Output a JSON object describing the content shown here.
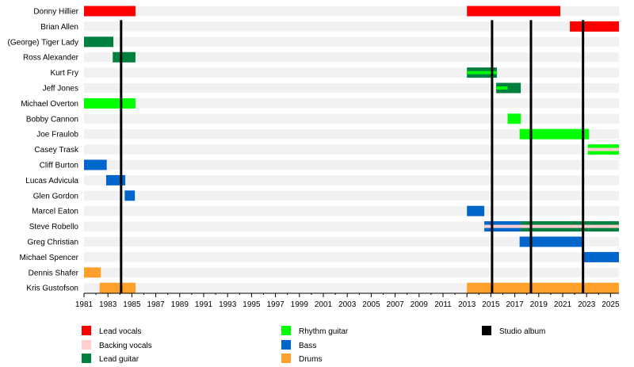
{
  "chart_data": {
    "type": "timeline",
    "xlim": [
      1981,
      2025.7
    ],
    "x_ticks": [
      1981,
      1983,
      1985,
      1987,
      1989,
      1991,
      1993,
      1995,
      1997,
      1999,
      2001,
      2003,
      2005,
      2007,
      2009,
      2011,
      2013,
      2015,
      2017,
      2019,
      2021,
      2023,
      2025
    ],
    "roles": {
      "lead_vocals": {
        "label": "Lead vocals",
        "color": "#ff0000"
      },
      "backing_vocals": {
        "label": "Backing vocals",
        "color": "#ffcfcf"
      },
      "lead_guitar": {
        "label": "Lead guitar",
        "color": "#00803f"
      },
      "rhythm_guitar": {
        "label": "Rhythm guitar",
        "color": "#00ff00"
      },
      "bass": {
        "label": "Bass",
        "color": "#0066cc"
      },
      "drums": {
        "label": "Drums",
        "color": "#ffa02a"
      },
      "studio_album": {
        "label": "Studio album",
        "color": "#000000"
      }
    },
    "legend_order": [
      [
        "lead_vocals",
        "backing_vocals",
        "lead_guitar"
      ],
      [
        "rhythm_guitar",
        "bass",
        "drums"
      ],
      [
        "studio_album"
      ]
    ],
    "legend_placement": "bottom",
    "studio_albums": [
      1984.1,
      2015.1,
      2018.35,
      2022.7
    ],
    "members": [
      {
        "name": "Donny Hillier",
        "periods": [
          {
            "role": "lead_vocals",
            "start": 1981,
            "end": 1985.3
          },
          {
            "role": "lead_vocals",
            "start": 2013,
            "end": 2020.8
          }
        ]
      },
      {
        "name": "Brian Allen",
        "periods": [
          {
            "role": "lead_vocals",
            "start": 2021.6,
            "end": 2025.7
          }
        ]
      },
      {
        "name": "(George) Tiger Lady",
        "periods": [
          {
            "role": "lead_guitar",
            "start": 1981,
            "end": 1983.45
          }
        ]
      },
      {
        "name": "Ross Alexander",
        "periods": [
          {
            "role": "lead_guitar",
            "start": 1983.4,
            "end": 1985.3
          }
        ]
      },
      {
        "name": "Kurt Fry",
        "periods": [
          {
            "role": "lead_guitar",
            "start": 2013,
            "end": 2015.5,
            "inner": "rhythm_guitar"
          }
        ]
      },
      {
        "name": "Jeff Jones",
        "periods": [
          {
            "role": "lead_guitar",
            "start": 2015.45,
            "end": 2017.5
          },
          {
            "role": "lead_guitar",
            "start": 2015.45,
            "end": 2016.4,
            "inner": "rhythm_guitar"
          }
        ]
      },
      {
        "name": "Michael Overton",
        "periods": [
          {
            "role": "rhythm_guitar",
            "start": 1981,
            "end": 1985.3
          }
        ]
      },
      {
        "name": "Bobby Cannon",
        "periods": [
          {
            "role": "rhythm_guitar",
            "start": 2016.4,
            "end": 2017.5
          }
        ]
      },
      {
        "name": "Joe Fraulob",
        "periods": [
          {
            "role": "rhythm_guitar",
            "start": 2017.4,
            "end": 2023.2
          }
        ]
      },
      {
        "name": "Casey Trask",
        "periods": [
          {
            "role": "rhythm_guitar",
            "start": 2023.1,
            "end": 2025.7,
            "inner": "backing_vocals"
          }
        ]
      },
      {
        "name": "Cliff Burton",
        "periods": [
          {
            "role": "bass",
            "start": 1981,
            "end": 1982.9
          }
        ]
      },
      {
        "name": "Lucas Advicula",
        "periods": [
          {
            "role": "bass",
            "start": 1982.85,
            "end": 1984.45
          }
        ]
      },
      {
        "name": "Glen Gordon",
        "periods": [
          {
            "role": "bass",
            "start": 1984.4,
            "end": 1985.25
          }
        ]
      },
      {
        "name": "Marcel Eaton",
        "periods": [
          {
            "role": "bass",
            "start": 2013,
            "end": 2014.45
          }
        ]
      },
      {
        "name": "Steve Robello",
        "periods": [
          {
            "role": "bass",
            "start": 2014.45,
            "end": 2017.5,
            "inner": "backing_vocals"
          },
          {
            "role": "lead_guitar",
            "start": 2017.5,
            "end": 2025.7,
            "inner": "backing_vocals"
          }
        ]
      },
      {
        "name": "Greg Christian",
        "periods": [
          {
            "role": "bass",
            "start": 2017.4,
            "end": 2022.7
          }
        ]
      },
      {
        "name": "Michael Spencer",
        "periods": [
          {
            "role": "bass",
            "start": 2022.6,
            "end": 2025.7
          }
        ]
      },
      {
        "name": "Dennis Shafer",
        "periods": [
          {
            "role": "drums",
            "start": 1981,
            "end": 1982.4
          }
        ]
      },
      {
        "name": "Kris Gustofson",
        "periods": [
          {
            "role": "drums",
            "start": 1982.3,
            "end": 1985.3
          },
          {
            "role": "drums",
            "start": 2013,
            "end": 2025.7
          }
        ]
      }
    ]
  }
}
